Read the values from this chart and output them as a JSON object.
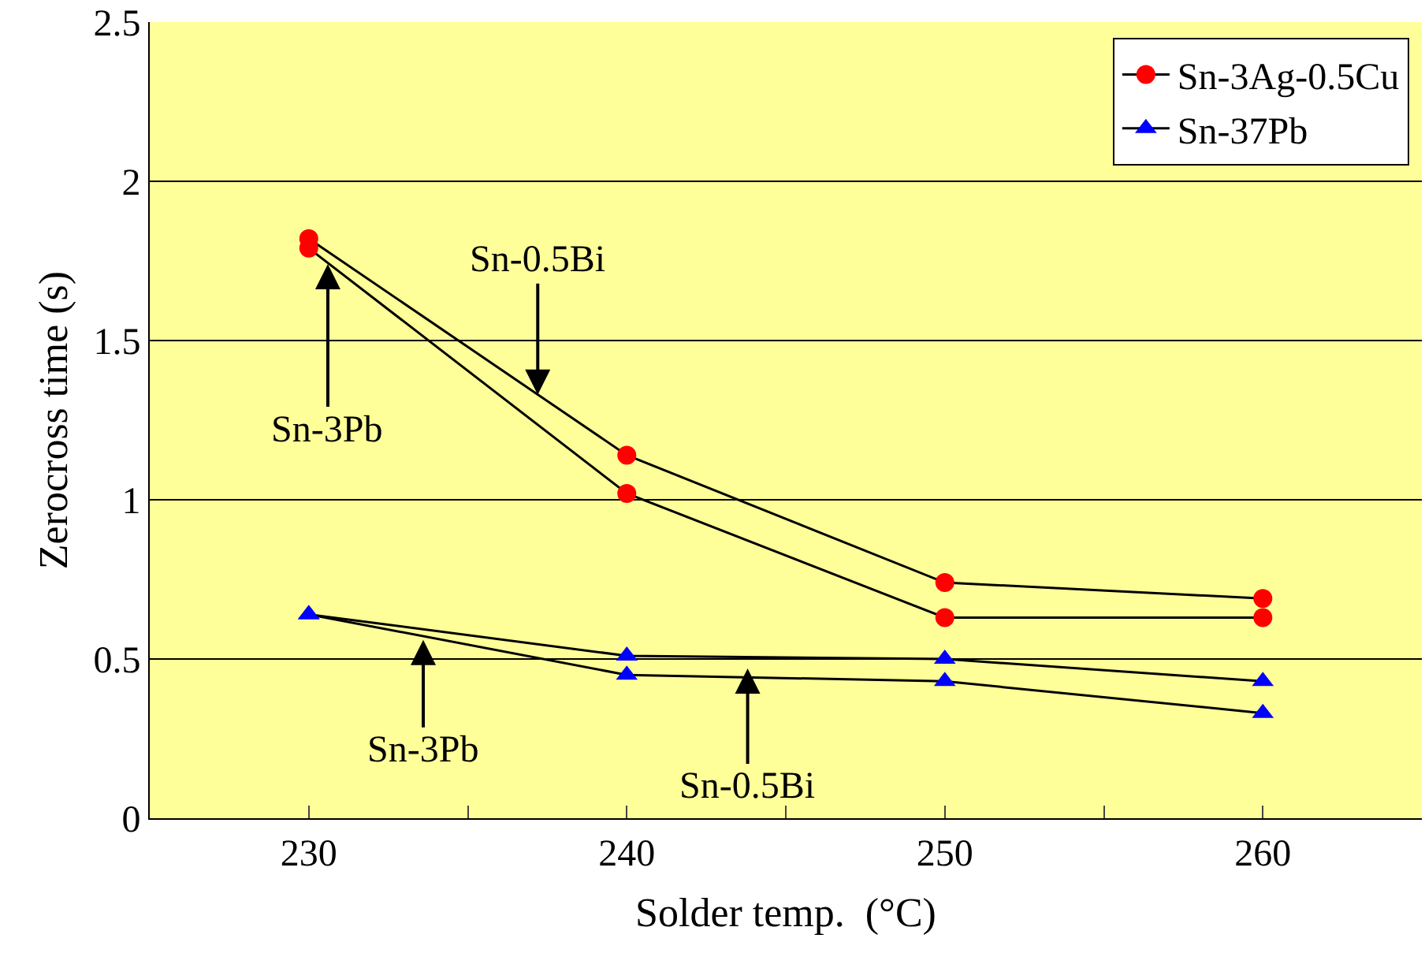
{
  "chart_data": {
    "type": "line",
    "xlabel": "Solder temp.  (°C)",
    "ylabel": "Zerocross time (s)",
    "x": [
      230,
      240,
      250,
      260
    ],
    "series": [
      {
        "name": "Sn-3Ag-0.5Cu",
        "color": "#ff0000",
        "marker": "circle",
        "values": [
          1.82,
          1.14,
          0.74,
          0.69
        ]
      },
      {
        "color": "#ff0000",
        "marker": "circle",
        "values": [
          1.79,
          1.02,
          0.63,
          0.63
        ]
      },
      {
        "name": "Sn-37Pb",
        "color": "#0000ff",
        "marker": "triangle",
        "values": [
          0.64,
          0.51,
          0.5,
          0.43
        ]
      },
      {
        "color": "#0000ff",
        "marker": "triangle",
        "values": [
          0.64,
          0.45,
          0.43,
          0.33
        ]
      }
    ],
    "annotations": [
      {
        "text": "Sn-3Pb",
        "x": 230.6,
        "y": 1.74
      },
      {
        "text": "Sn-0.5Bi",
        "x": 237.2,
        "y": 1.33
      },
      {
        "text": "Sn-3Pb",
        "x": 233.6,
        "y": 0.56
      },
      {
        "text": "Sn-0.5Bi",
        "x": 243.8,
        "y": 0.47
      }
    ],
    "xlim": [
      225,
      265
    ],
    "xticks": [
      230,
      {
        "value": 235,
        "label": null
      },
      240,
      {
        "value": 245,
        "label": null
      },
      250,
      {
        "value": 255,
        "label": null
      },
      260
    ],
    "ylim": [
      0,
      2.5
    ],
    "yticks": [
      0,
      0.5,
      1,
      1.5,
      2,
      2.5
    ],
    "grid": "y",
    "legend": "top right",
    "line_style": "solid"
  }
}
